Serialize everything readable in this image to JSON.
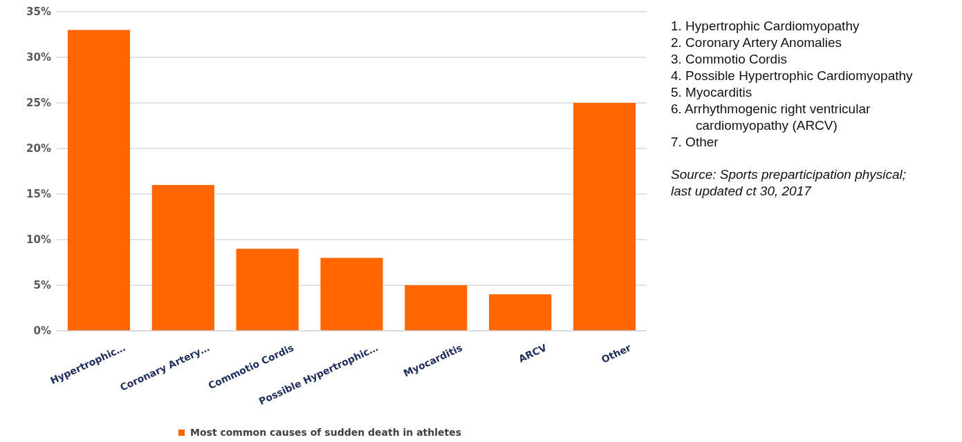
{
  "chart_data": {
    "type": "bar",
    "categories": [
      "Hypertrophic…",
      "Coronary Artery…",
      "Commotio Cordis",
      "Possible Hypertrophic…",
      "Myocarditis",
      "ARCV",
      "Other"
    ],
    "series": [
      {
        "name": "Most common causes of sudden death in athletes",
        "color": "#ff6600",
        "values": [
          33,
          16,
          9,
          8,
          5,
          4,
          25
        ]
      }
    ],
    "ylim": [
      0,
      35
    ],
    "yticks": [
      {
        "value": 0,
        "label": "0%"
      },
      {
        "value": 5,
        "label": "5%"
      },
      {
        "value": 10,
        "label": "10%"
      },
      {
        "value": 15,
        "label": "15%"
      },
      {
        "value": 20,
        "label": "20%"
      },
      {
        "value": 25,
        "label": "25%"
      },
      {
        "value": 30,
        "label": "30%"
      },
      {
        "value": 35,
        "label": "35%"
      }
    ],
    "grid": "y",
    "legend": "bottom",
    "annotations": [
      "1. Hypertrophic Cardiomyopathy",
      "2. Coronary Artery Anomalies",
      "3. Commotio Cordis",
      "4. Possible Hypertrophic Cardiomyopathy",
      "5. Myocarditis",
      "6. Arrhythmogenic right ventricular cardiomyopathy (ARCV)",
      "7. Other",
      "Source: Sports preparticipation physical; last updated ct 30, 2017"
    ]
  }
}
